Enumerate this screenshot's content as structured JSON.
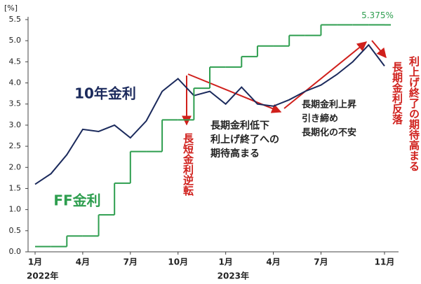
{
  "chart_data": {
    "type": "line",
    "y_unit_label": "[%]",
    "x": [
      "2022-01",
      "2022-02",
      "2022-03",
      "2022-04",
      "2022-05",
      "2022-06",
      "2022-07",
      "2022-08",
      "2022-09",
      "2022-10",
      "2022-11",
      "2022-12",
      "2023-01",
      "2023-02",
      "2023-03",
      "2023-04",
      "2023-05",
      "2023-06",
      "2023-07",
      "2023-08",
      "2023-09",
      "2023-10",
      "2023-11"
    ],
    "xlim": [
      "2022-01",
      "2023-11"
    ],
    "xticks": [
      {
        "value": "2022-01",
        "label": "1月"
      },
      {
        "value": "2022-04",
        "label": "4月"
      },
      {
        "value": "2022-07",
        "label": "7月"
      },
      {
        "value": "2022-10",
        "label": "10月"
      },
      {
        "value": "2023-01",
        "label": "1月"
      },
      {
        "value": "2023-04",
        "label": "4月"
      },
      {
        "value": "2023-07",
        "label": "7月"
      },
      {
        "value": "2023-11",
        "label": "11月"
      }
    ],
    "year_labels": [
      {
        "value": "2022-01",
        "label": "2022年"
      },
      {
        "value": "2023-01",
        "label": "2023年"
      }
    ],
    "ylim": [
      0,
      5.5
    ],
    "yticks": [
      {
        "value": 0,
        "label": "0.0"
      },
      {
        "value": 0.5,
        "label": "0.5"
      },
      {
        "value": 1,
        "label": "1.0"
      },
      {
        "value": 1.5,
        "label": "1.5"
      },
      {
        "value": 2,
        "label": "2.0"
      },
      {
        "value": 2.5,
        "label": "2.5"
      },
      {
        "value": 3,
        "label": "3.0"
      },
      {
        "value": 3.5,
        "label": "3.5"
      },
      {
        "value": 4,
        "label": "4.0"
      },
      {
        "value": 4.5,
        "label": "4.5"
      },
      {
        "value": 5,
        "label": "5.0"
      },
      {
        "value": 5.5,
        "label": "5.5"
      }
    ],
    "grid": false,
    "series": [
      {
        "name": "10年金利",
        "color": "#1b2a5c",
        "style": "line",
        "values": [
          1.6,
          1.85,
          2.3,
          2.9,
          2.85,
          3.0,
          2.7,
          3.1,
          3.8,
          4.1,
          3.7,
          3.8,
          3.5,
          3.9,
          3.5,
          3.45,
          3.6,
          3.8,
          3.95,
          4.2,
          4.5,
          4.9,
          4.4
        ]
      },
      {
        "name": "FF金利",
        "color": "#2e9e4f",
        "style": "step",
        "values": [
          0.125,
          0.125,
          0.375,
          0.375,
          0.875,
          1.625,
          2.375,
          2.375,
          3.125,
          3.125,
          3.875,
          4.375,
          4.375,
          4.625,
          4.875,
          4.875,
          5.125,
          5.125,
          5.375,
          5.375,
          5.375,
          5.375,
          5.375
        ],
        "value_labels": [
          null,
          null,
          null,
          null,
          null,
          null,
          null,
          null,
          null,
          null,
          null,
          null,
          null,
          null,
          null,
          null,
          null,
          null,
          null,
          null,
          null,
          null,
          "5.375%"
        ]
      }
    ],
    "annotations": [
      {
        "lines": [
          "長短金利逆転"
        ],
        "vertical": true
      },
      {
        "lines": [
          "長期金利低下",
          "利上げ終了への",
          "期待高まる"
        ]
      },
      {
        "lines": [
          "長期金利上昇",
          "引き締め",
          "長期化の不安"
        ]
      },
      {
        "lines": [
          "長期金利反落"
        ],
        "vertical": true
      },
      {
        "lines": [
          "利上げ終了の期待高まる"
        ],
        "vertical": true
      }
    ]
  }
}
